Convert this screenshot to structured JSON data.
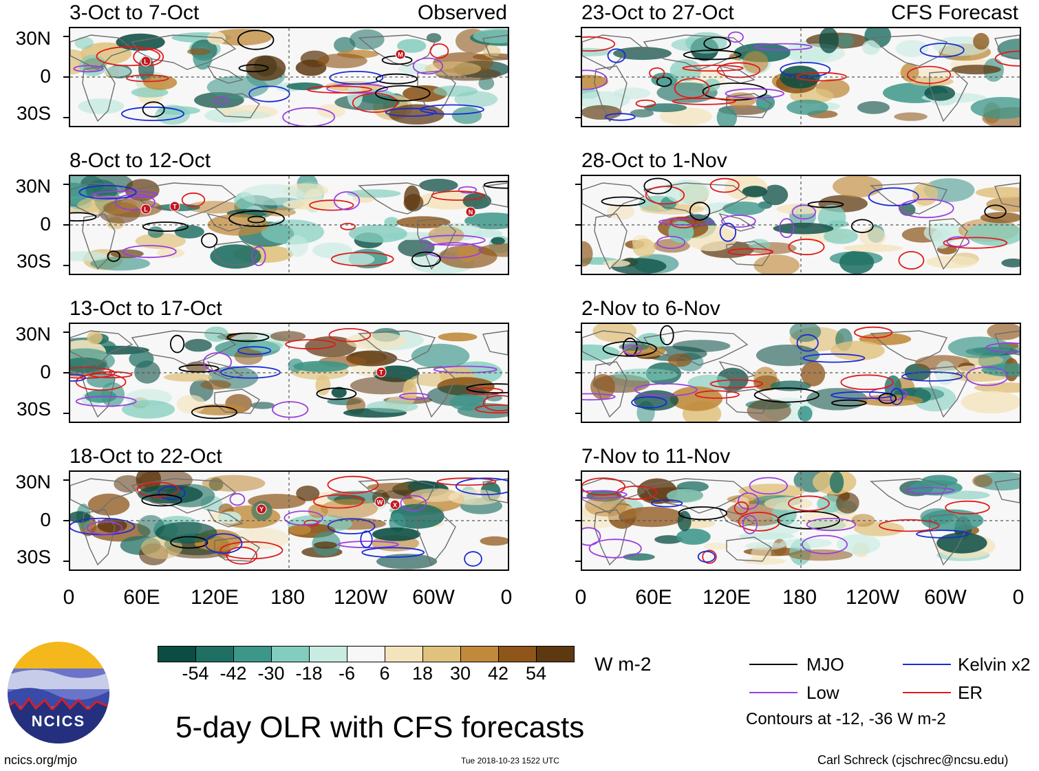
{
  "panels_left": [
    {
      "title": "3-Oct to 7-Oct",
      "subtitle": "Observed"
    },
    {
      "title": "8-Oct to 12-Oct",
      "subtitle": ""
    },
    {
      "title": "13-Oct to 17-Oct",
      "subtitle": ""
    },
    {
      "title": "18-Oct to 22-Oct",
      "subtitle": ""
    }
  ],
  "panels_right": [
    {
      "title": "23-Oct to 27-Oct",
      "subtitle": "CFS Forecast"
    },
    {
      "title": "28-Oct to 1-Nov",
      "subtitle": ""
    },
    {
      "title": "2-Nov to 6-Nov",
      "subtitle": ""
    },
    {
      "title": "7-Nov to 11-Nov",
      "subtitle": ""
    }
  ],
  "lat_labels": [
    "30N",
    "0",
    "30S"
  ],
  "lon_labels": [
    "0",
    "60E",
    "120E",
    "180",
    "120W",
    "60W",
    "0"
  ],
  "colorbar": {
    "colors": [
      "#0b4d43",
      "#1f6f63",
      "#3d968a",
      "#82cdbd",
      "#c8ebe2",
      "#f7f7f7",
      "#f4e4bd",
      "#e0c27e",
      "#c08a3a",
      "#8e561a",
      "#5e3810"
    ],
    "ticks": [
      "-54",
      "-42",
      "-30",
      "-18",
      "-6",
      "6",
      "18",
      "30",
      "42",
      "54"
    ],
    "units": "W m-2"
  },
  "title": "5-day OLR with CFS forecasts",
  "legend": {
    "items": [
      {
        "label": "MJO",
        "color": "#000000"
      },
      {
        "label": "Kelvin x2",
        "color": "#1a2ad6"
      },
      {
        "label": "Low",
        "color": "#9a3ee0"
      },
      {
        "label": "ER",
        "color": "#e01a1a"
      }
    ],
    "note": "Contours at -12, -36 W m-2"
  },
  "logo_text": "NCICS",
  "footer_left": "ncics.org/mjo",
  "footer_center": "Tue 2018-10-23 1522 UTC",
  "footer_right": "Carl Schreck (cjschrec@ncsu.edu)",
  "storm_markers": [
    {
      "panel": 0,
      "label": "L"
    },
    {
      "panel": 0,
      "label": "M"
    },
    {
      "panel": 1,
      "label": "L"
    },
    {
      "panel": 1,
      "label": "T"
    },
    {
      "panel": 1,
      "label": "N"
    },
    {
      "panel": 2,
      "label": "T"
    },
    {
      "panel": 3,
      "label": "Y"
    },
    {
      "panel": 3,
      "label": "W"
    },
    {
      "panel": 3,
      "label": "X"
    }
  ]
}
